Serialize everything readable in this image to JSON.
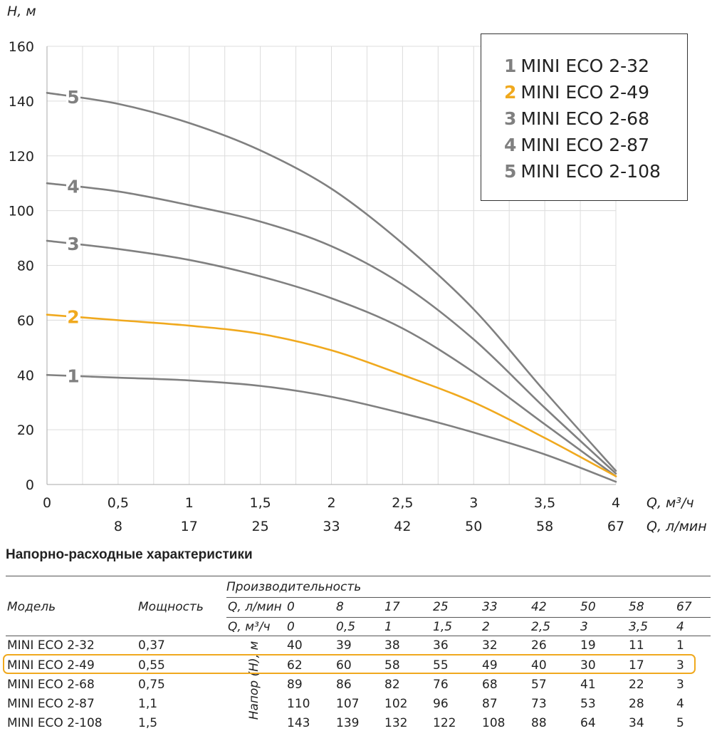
{
  "chart_data": {
    "type": "line",
    "title": "",
    "ylabel": "H, м",
    "xlabel": "Q, м³/ч",
    "xlabel2": "Q, л/мин",
    "x": [
      0,
      0.5,
      1,
      1.5,
      2,
      2.5,
      3,
      3.5,
      4
    ],
    "x_tick_labels": [
      "0",
      "0,5",
      "1",
      "1,5",
      "2",
      "2,5",
      "3",
      "3,5",
      "4"
    ],
    "x2_tick_labels": [
      "8",
      "17",
      "25",
      "33",
      "42",
      "50",
      "58",
      "67"
    ],
    "y_ticks": [
      0,
      20,
      40,
      60,
      80,
      100,
      120,
      140,
      160
    ],
    "xlim": [
      0,
      4
    ],
    "ylim": [
      0,
      160
    ],
    "grid": true,
    "legend_position": "top-right",
    "series": [
      {
        "id": "1",
        "name": "MINI ECO 2-32",
        "color": "#808080",
        "values": [
          40,
          39,
          38,
          36,
          32,
          26,
          19,
          11,
          1
        ]
      },
      {
        "id": "2",
        "name": "MINI ECO 2-49",
        "color": "#f0a91e",
        "values": [
          62,
          60,
          58,
          55,
          49,
          40,
          30,
          17,
          3
        ]
      },
      {
        "id": "3",
        "name": "MINI ECO 2-68",
        "color": "#808080",
        "values": [
          89,
          86,
          82,
          76,
          68,
          57,
          41,
          22,
          3
        ]
      },
      {
        "id": "4",
        "name": "MINI ECO 2-87",
        "color": "#808080",
        "values": [
          110,
          107,
          102,
          96,
          87,
          73,
          53,
          28,
          4
        ]
      },
      {
        "id": "5",
        "name": "MINI ECO 2-108",
        "color": "#808080",
        "values": [
          143,
          139,
          132,
          122,
          108,
          88,
          64,
          34,
          5
        ]
      }
    ]
  },
  "legend": [
    {
      "num": "1",
      "label": "MINI ECO 2-32",
      "color": "#808080"
    },
    {
      "num": "2",
      "label": "MINI ECO 2-49",
      "color": "#f0a91e"
    },
    {
      "num": "3",
      "label": "MINI ECO 2-68",
      "color": "#808080"
    },
    {
      "num": "4",
      "label": "MINI ECO 2-87",
      "color": "#808080"
    },
    {
      "num": "5",
      "label": "MINI ECO 2-108",
      "color": "#808080"
    }
  ],
  "table": {
    "title": "Напорно-расходные характеристики",
    "col_model": "Модель",
    "col_power": "Мощность",
    "col_perf": "Производительность",
    "row_q_lmin_label": "Q, л/мин",
    "row_q_m3h_label": "Q, м³/ч",
    "head_label": "Напор (H), м",
    "q_lmin": [
      "0",
      "8",
      "17",
      "25",
      "33",
      "42",
      "50",
      "58",
      "67"
    ],
    "q_m3h": [
      "0",
      "0,5",
      "1",
      "1,5",
      "2",
      "2,5",
      "3",
      "3,5",
      "4"
    ],
    "rows": [
      {
        "model": "MINI ECO 2-32",
        "power": "0,37",
        "values": [
          "40",
          "39",
          "38",
          "36",
          "32",
          "26",
          "19",
          "11",
          "1"
        ]
      },
      {
        "model": "MINI ECO 2-49",
        "power": "0,55",
        "values": [
          "62",
          "60",
          "58",
          "55",
          "49",
          "40",
          "30",
          "17",
          "3"
        ]
      },
      {
        "model": "MINI ECO 2-68",
        "power": "0,75",
        "values": [
          "89",
          "86",
          "82",
          "76",
          "68",
          "57",
          "41",
          "22",
          "3"
        ]
      },
      {
        "model": "MINI ECO 2-87",
        "power": "1,1",
        "values": [
          "110",
          "107",
          "102",
          "96",
          "87",
          "73",
          "53",
          "28",
          "4"
        ]
      },
      {
        "model": "MINI ECO 2-108",
        "power": "1,5",
        "values": [
          "143",
          "139",
          "132",
          "122",
          "108",
          "88",
          "64",
          "34",
          "5"
        ]
      }
    ],
    "highlight_color": "#f0a91e"
  }
}
